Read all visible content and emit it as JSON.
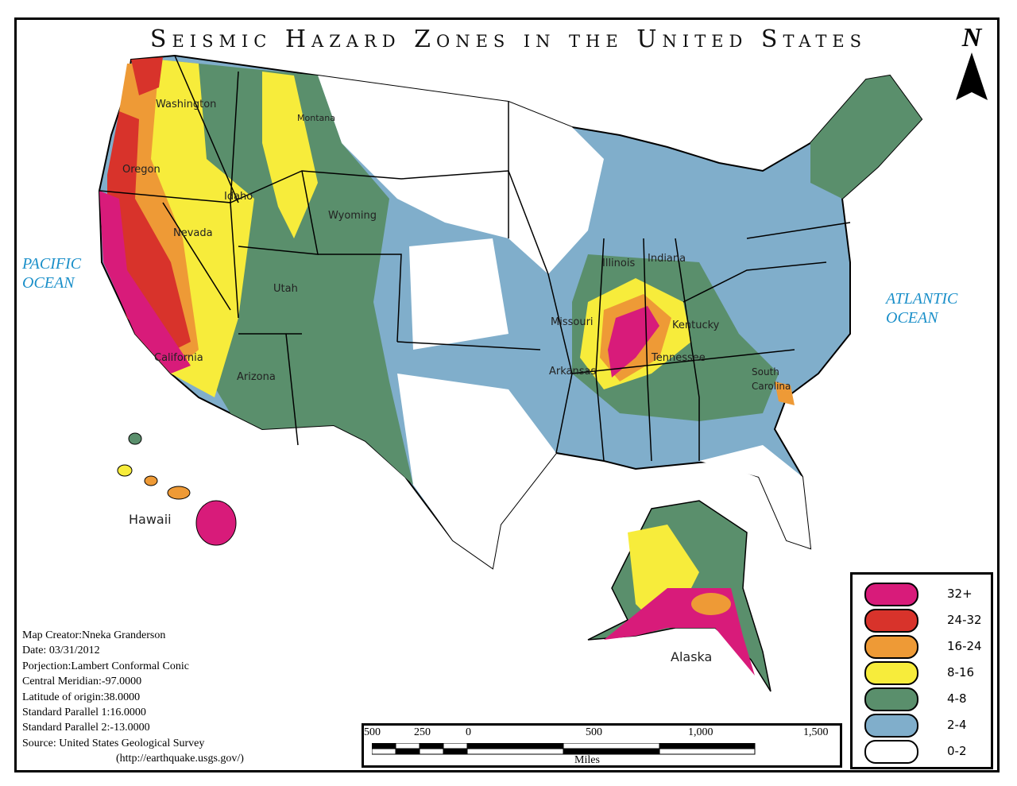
{
  "title": "Seismic Hazard Zones in the United States",
  "north_label": "N",
  "oceans": {
    "pacific": [
      "PACIFIC",
      "OCEAN"
    ],
    "atlantic": [
      "ATLANTIC",
      "OCEAN"
    ]
  },
  "state_labels": [
    "Washington",
    "Oregon",
    "Idaho",
    "Montana",
    "Wyoming",
    "Nevada",
    "Utah",
    "California",
    "Arizona",
    "Illinois",
    "Indiana",
    "Missouri",
    "Kentucky",
    "Arkansas",
    "Tennessee",
    "South",
    "Carolina",
    "Hawaii",
    "Alaska"
  ],
  "metadata": [
    "Map Creator:Nneka Granderson",
    "Date: 03/31/2012",
    "Porjection:Lambert Conformal Conic",
    "Central Meridian:-97.0000",
    "Latitude of origin:38.0000",
    "Standard Parallel 1:16.0000",
    "Standard Parallel 2:-13.0000",
    "Source: United States Geological Survey",
    "(http://earthquake.usgs.gov/)"
  ],
  "legend": [
    {
      "label": "32+",
      "color": "#d81b7a"
    },
    {
      "label": "24-32",
      "color": "#d8332b"
    },
    {
      "label": "16-24",
      "color": "#ee9a36"
    },
    {
      "label": "8-16",
      "color": "#f7ec3b"
    },
    {
      "label": "4-8",
      "color": "#5a8f6c"
    },
    {
      "label": "2-4",
      "color": "#80aecb"
    },
    {
      "label": "0-2",
      "color": "#ffffff"
    }
  ],
  "scale_bar": {
    "ticks": [
      "500",
      "250",
      "0",
      "500",
      "1,000",
      "1,500"
    ],
    "unit": "Miles"
  }
}
